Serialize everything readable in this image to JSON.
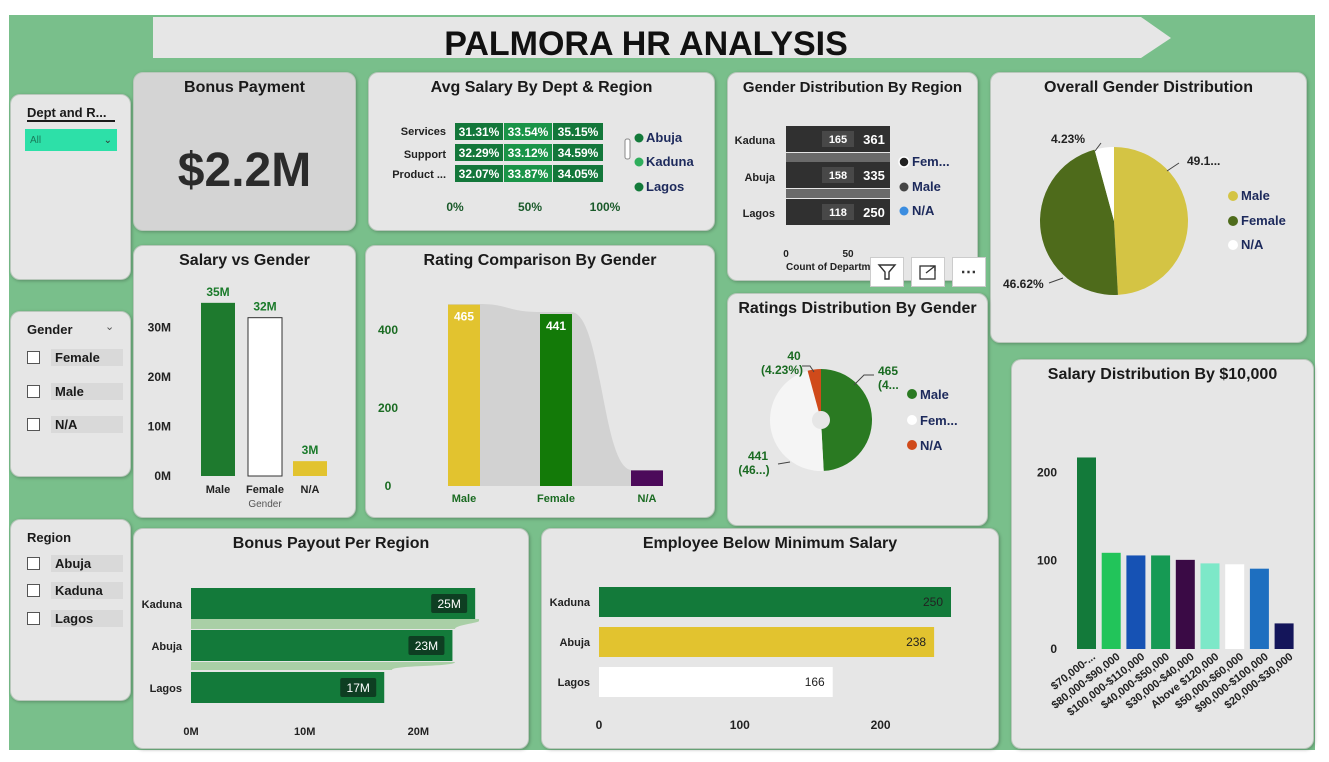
{
  "title": "PALMORA HR ANALYSIS",
  "slicers": {
    "dept_region": {
      "label": "Dept and R...",
      "value": "All"
    },
    "gender": {
      "label": "Gender",
      "options": [
        "Female",
        "Male",
        "N/A"
      ]
    },
    "region": {
      "label": "Region",
      "options": [
        "Abuja",
        "Kaduna",
        "Lagos"
      ]
    }
  },
  "bonus_payment": {
    "title": "Bonus Payment",
    "value": "$2.2M"
  },
  "avg_salary": {
    "title": "Avg Salary By Dept & Region",
    "rows": [
      "Services",
      "Support",
      "Product ..."
    ],
    "cells": [
      [
        "31.31%",
        "33.54%",
        "35.15%"
      ],
      [
        "32.29%",
        "33.12%",
        "34.59%"
      ],
      [
        "32.07%",
        "33.87%",
        "34.05%"
      ]
    ],
    "axis": [
      "0%",
      "50%",
      "100%"
    ],
    "legend": [
      "Abuja",
      "Kaduna",
      "Lagos"
    ]
  },
  "gender_by_region": {
    "title": "Gender Distribution By Region",
    "regions": [
      "Kaduna",
      "Abuja",
      "Lagos"
    ],
    "inner_values": [
      "165",
      "158",
      "118"
    ],
    "outer_values": [
      "361",
      "335",
      "250"
    ],
    "axis": [
      "0",
      "50"
    ],
    "xlabel": "Count of Departm...",
    "legend": [
      "Fem...",
      "Male",
      "N/A"
    ]
  },
  "overall_gender": {
    "title": "Overall Gender Distribution",
    "labels": [
      "4.23%",
      "49.1...",
      "46.62%"
    ],
    "legend": [
      "Male",
      "Female",
      "N/A"
    ]
  },
  "salary_vs_gender": {
    "title": "Salary vs Gender",
    "xlabel": "Gender"
  },
  "rating_comparison": {
    "title": "Rating Comparison By Gender"
  },
  "ratings_distribution": {
    "title": "Ratings Distribution By Gender",
    "labels": {
      "na": [
        "40",
        "(4.23%)"
      ],
      "male": [
        "465",
        "(4..."
      ],
      "female": [
        "441",
        "(46...)"
      ]
    },
    "legend": [
      "Male",
      "Fem...",
      "N/A"
    ]
  },
  "salary_distribution": {
    "title": "Salary Distribution By $10,000"
  },
  "bonus_per_region": {
    "title": "Bonus Payout Per Region"
  },
  "below_min_salary": {
    "title": "Employee Below Minimum Salary"
  },
  "header_icons": [
    "filter-icon",
    "focus-mode-icon",
    "more-options-icon"
  ],
  "colors": {
    "background": "#79bf8b",
    "card": "#e6e6e6",
    "dark_green": "#137a3a",
    "yellow": "#e2c32f",
    "olive": "#4e6b1b",
    "purple": "#4c0a5a"
  },
  "chart_data": [
    {
      "type": "bar",
      "title": "Salary vs Gender",
      "xlabel": "Gender",
      "categories": [
        "Male",
        "Female",
        "N/A"
      ],
      "values": [
        35,
        32,
        3
      ],
      "data_labels": [
        "35M",
        "32M",
        "3M"
      ],
      "yticks": [
        "0M",
        "10M",
        "20M",
        "30M"
      ],
      "ylim": [
        0,
        38
      ]
    },
    {
      "type": "bar",
      "title": "Rating Comparison By Gender",
      "categories": [
        "Male",
        "Female",
        "N/A"
      ],
      "values": [
        465,
        441,
        40
      ],
      "data_labels": [
        "465",
        "441",
        ""
      ],
      "yticks": [
        "0",
        "200",
        "400"
      ],
      "ylim": [
        0,
        500
      ]
    },
    {
      "type": "bar",
      "title": "Salary Distribution By $10,000",
      "categories": [
        "$70,000-...",
        "$80,000-$90,000",
        "$100,000-$110,000",
        "$40,000-$50,000",
        "$30,000-$40,000",
        "Above $120,000",
        "$50,000-$60,000",
        "$90,000-$100,000",
        "$20,000-$30,000"
      ],
      "values": [
        217,
        109,
        106,
        106,
        101,
        97,
        96,
        91,
        29
      ],
      "yticks": [
        "0",
        "100",
        "200"
      ],
      "ylim": [
        0,
        230
      ]
    },
    {
      "type": "bar",
      "orientation": "horizontal",
      "title": "Bonus Payout Per Region",
      "categories": [
        "Kaduna",
        "Abuja",
        "Lagos"
      ],
      "values": [
        25,
        23,
        17
      ],
      "data_labels": [
        "25M",
        "23M",
        "17M"
      ],
      "xticks": [
        "0M",
        "10M",
        "20M"
      ],
      "xlim": [
        0,
        26
      ]
    },
    {
      "type": "bar",
      "orientation": "horizontal",
      "title": "Employee Below Minimum Salary",
      "categories": [
        "Kaduna",
        "Abuja",
        "Lagos"
      ],
      "values": [
        250,
        238,
        166
      ],
      "data_labels": [
        "250",
        "238",
        "166"
      ],
      "xticks": [
        "0",
        "100",
        "200"
      ],
      "xlim": [
        0,
        260
      ]
    },
    {
      "type": "pie",
      "title": "Overall Gender Distribution",
      "categories": [
        "Male",
        "Female",
        "N/A"
      ],
      "values": [
        49.15,
        46.62,
        4.23
      ]
    },
    {
      "type": "pie",
      "title": "Ratings Distribution By Gender",
      "categories": [
        "Male",
        "Female",
        "N/A"
      ],
      "values": [
        465,
        441,
        40
      ]
    }
  ]
}
